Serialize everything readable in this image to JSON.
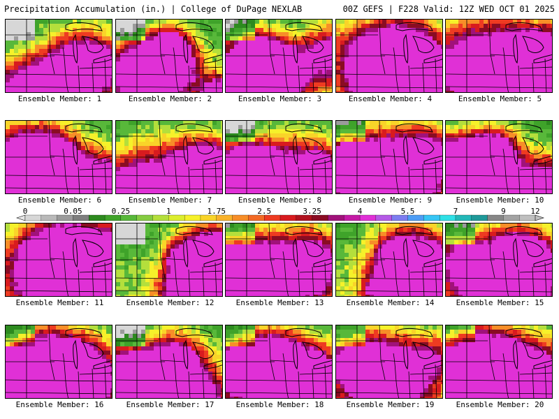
{
  "header": {
    "title": "Precipitation Accumulation (in.) | College of DuPage NEXLAB",
    "run_info": "00Z GEFS | F228 Valid: 12Z WED OCT 01 2025"
  },
  "colors": {
    "bins": [
      "#d7d7d7",
      "#b9b9b9",
      "#9b9b9b",
      "#7e7e7e",
      "#2d8a1f",
      "#3fa32a",
      "#58b83a",
      "#85cc41",
      "#b4df3c",
      "#dcee2e",
      "#f6f12a",
      "#f9d429",
      "#f9b22a",
      "#f78e28",
      "#f36a25",
      "#ee3b21",
      "#d81b1f",
      "#b0121f",
      "#8a0c23",
      "#a0127a",
      "#c41aa5",
      "#e030d6",
      "#b45ae6",
      "#7d7df0",
      "#4e9df5",
      "#37c6f5",
      "#2fe0e6",
      "#23b8b8",
      "#1f9999",
      "#878787",
      "#a3a3a3",
      "#bfbfbf"
    ],
    "land_dry": "#ffffff"
  },
  "colorbar": {
    "labels": [
      "0",
      "0.05",
      "0.25",
      "1",
      "1.75",
      "2.5",
      "3.25",
      "4",
      "5.5",
      "7",
      "9",
      "12"
    ]
  },
  "members": [
    {
      "label": "Ensemble Member: 1"
    },
    {
      "label": "Ensemble Member: 2"
    },
    {
      "label": "Ensemble Member: 3"
    },
    {
      "label": "Ensemble Member: 4"
    },
    {
      "label": "Ensemble Member: 5"
    },
    {
      "label": "Ensemble Member: 6"
    },
    {
      "label": "Ensemble Member: 7"
    },
    {
      "label": "Ensemble Member: 8"
    },
    {
      "label": "Ensemble Member: 9"
    },
    {
      "label": "Ensemble Member: 10"
    },
    {
      "label": "Ensemble Member: 11"
    },
    {
      "label": "Ensemble Member: 12"
    },
    {
      "label": "Ensemble Member: 13"
    },
    {
      "label": "Ensemble Member: 14"
    },
    {
      "label": "Ensemble Member: 15"
    },
    {
      "label": "Ensemble Member: 16"
    },
    {
      "label": "Ensemble Member: 17"
    },
    {
      "label": "Ensemble Member: 18"
    },
    {
      "label": "Ensemble Member: 19"
    },
    {
      "label": "Ensemble Member: 20"
    }
  ]
}
